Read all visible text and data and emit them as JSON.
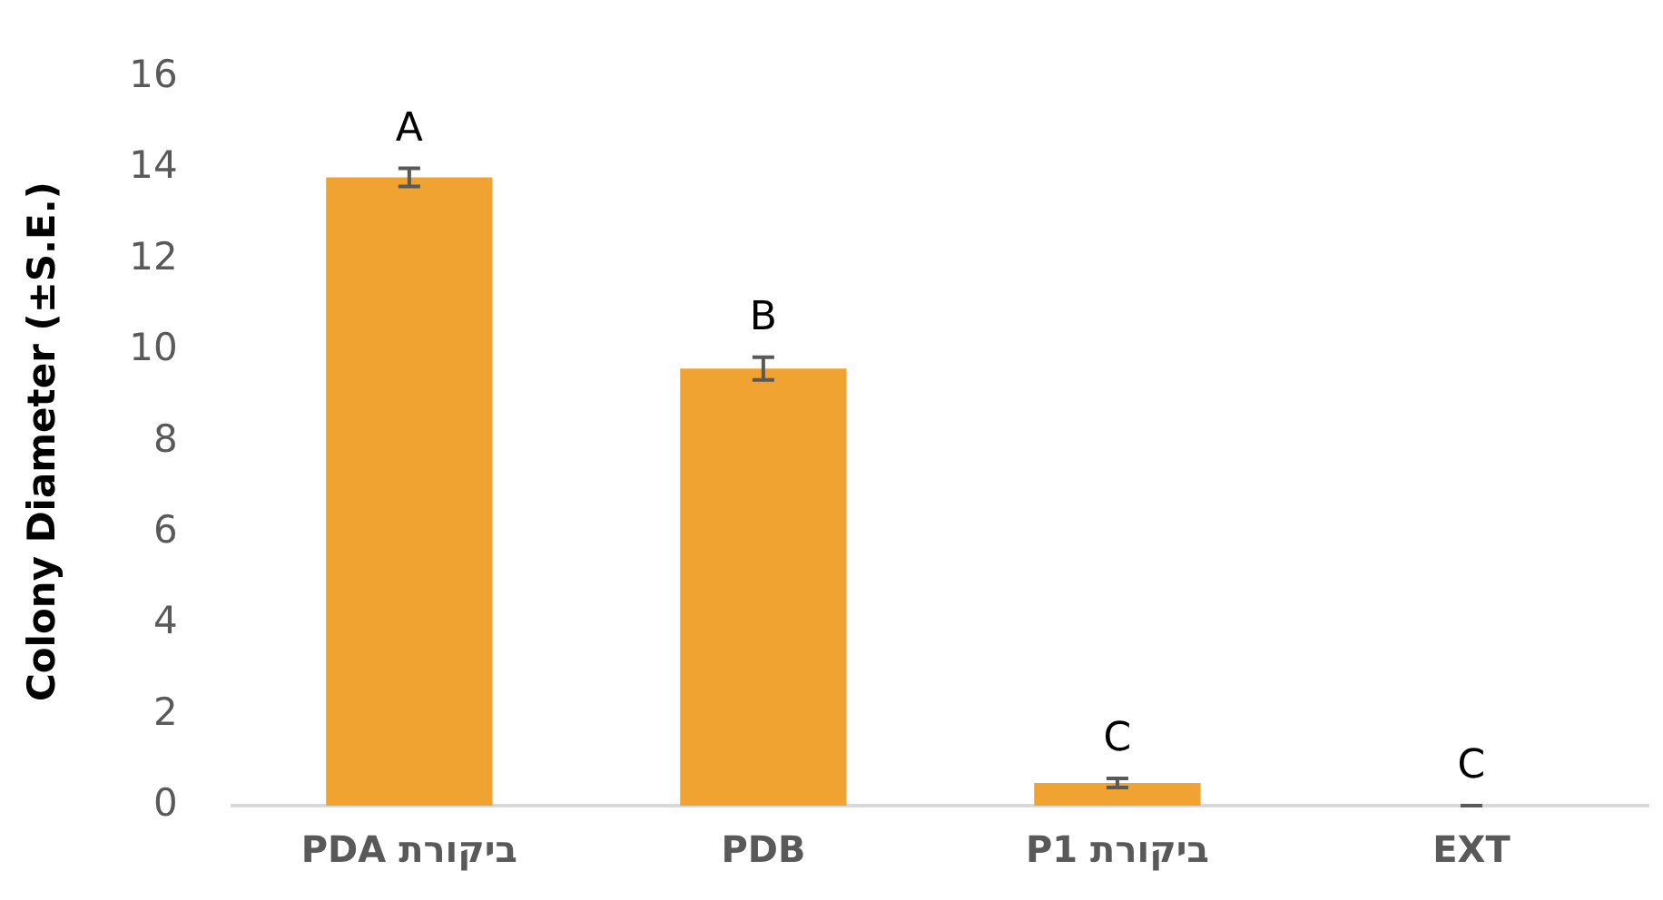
{
  "chart_data": {
    "type": "bar",
    "ylabel": "Colony Diameter (±S.E.)",
    "categories": [
      "ביקורת PDA",
      "PDB",
      "ביקורת P1",
      "EXT"
    ],
    "values": [
      13.8,
      9.6,
      0.5,
      0
    ],
    "errors": [
      0.2,
      0.25,
      0.1,
      0
    ],
    "color": "#f0a330",
    "ylim": [
      0,
      16
    ],
    "yticks": [
      0,
      2,
      4,
      6,
      8,
      10,
      12,
      14,
      16
    ],
    "grid": false,
    "legend": false,
    "annotations": [
      {
        "text": "A",
        "x": "ביקורת PDA",
        "y": 14.0
      },
      {
        "text": "B",
        "x": "PDB",
        "y": 9.85
      },
      {
        "text": "C",
        "x": "ביקורת P1",
        "y": 0.6
      },
      {
        "text": "C",
        "x": "EXT",
        "y": 0
      }
    ]
  }
}
